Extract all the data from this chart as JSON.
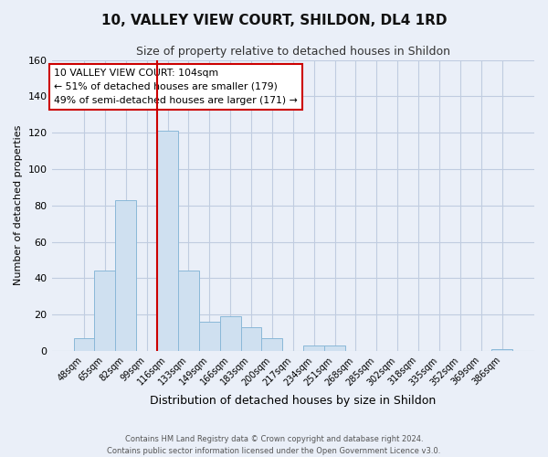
{
  "title1": "10, VALLEY VIEW COURT, SHILDON, DL4 1RD",
  "title2": "Size of property relative to detached houses in Shildon",
  "xlabel": "Distribution of detached houses by size in Shildon",
  "ylabel": "Number of detached properties",
  "bar_labels": [
    "48sqm",
    "65sqm",
    "82sqm",
    "99sqm",
    "116sqm",
    "133sqm",
    "149sqm",
    "166sqm",
    "183sqm",
    "200sqm",
    "217sqm",
    "234sqm",
    "251sqm",
    "268sqm",
    "285sqm",
    "302sqm",
    "318sqm",
    "335sqm",
    "352sqm",
    "369sqm",
    "386sqm"
  ],
  "bar_values": [
    7,
    44,
    83,
    0,
    121,
    44,
    16,
    19,
    13,
    7,
    0,
    3,
    3,
    0,
    0,
    0,
    0,
    0,
    0,
    0,
    1
  ],
  "bar_color": "#cfe0f0",
  "bar_edge_color": "#8ab8d8",
  "vline_x": 3.5,
  "vline_color": "#cc0000",
  "ylim": [
    0,
    160
  ],
  "yticks": [
    0,
    20,
    40,
    60,
    80,
    100,
    120,
    140,
    160
  ],
  "annotation_title": "10 VALLEY VIEW COURT: 104sqm",
  "annotation_line1": "← 51% of detached houses are smaller (179)",
  "annotation_line2": "49% of semi-detached houses are larger (171) →",
  "footer1": "Contains HM Land Registry data © Crown copyright and database right 2024.",
  "footer2": "Contains public sector information licensed under the Open Government Licence v3.0.",
  "bg_color": "#eaeff8",
  "plot_bg_color": "#eaeff8",
  "grid_color": "#c0cce0"
}
